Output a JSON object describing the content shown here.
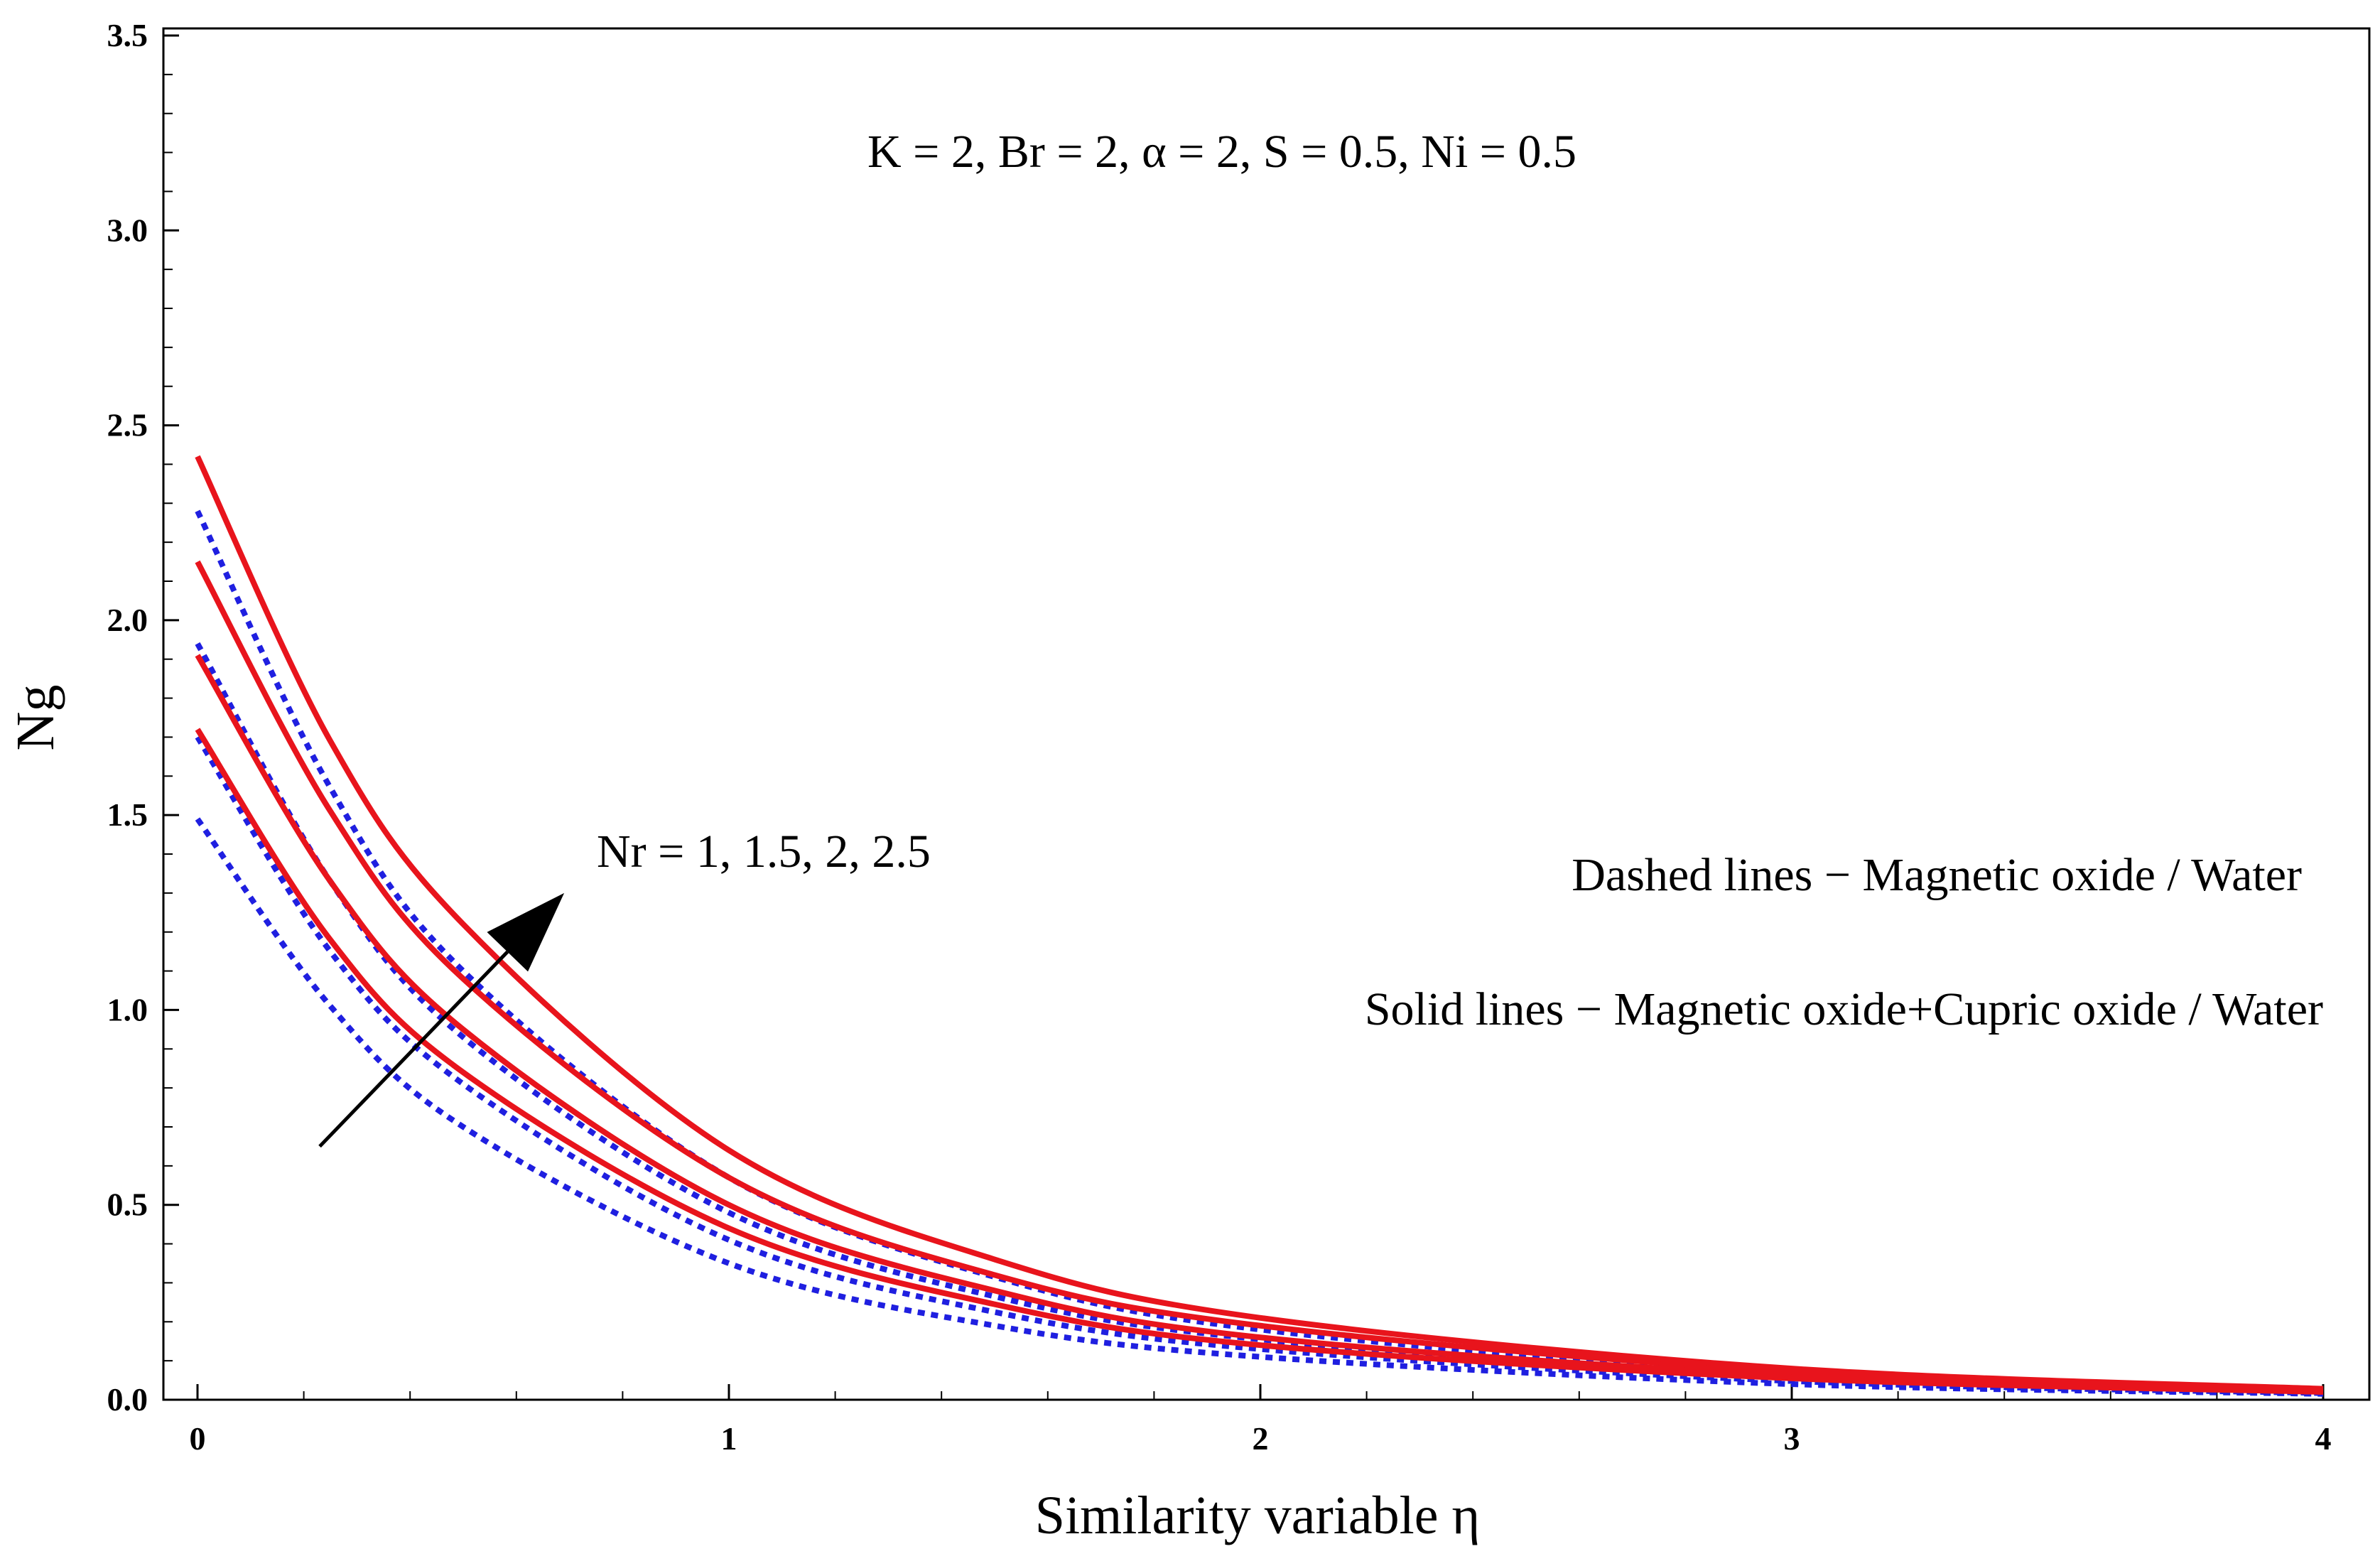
{
  "chart_data": {
    "type": "line",
    "title": "",
    "xlabel": "Similarity variable η",
    "ylabel": "Ng",
    "xlim": [
      0,
      4
    ],
    "ylim": [
      0,
      3.5
    ],
    "xticks": [
      0,
      1,
      2,
      3,
      4
    ],
    "xtick_labels": [
      "0",
      "1",
      "2",
      "3",
      "4"
    ],
    "yticks": [
      0,
      0.5,
      1.0,
      1.5,
      2.0,
      2.5,
      3.0,
      3.5
    ],
    "ytick_labels": [
      "0.0",
      "0.5",
      "1.0",
      "1.5",
      "2.0",
      "2.5",
      "3.0",
      "3.5"
    ],
    "grid": false,
    "annotations": {
      "params": "K = 2,  Br = 2,  α = 2, S = 0.5, Ni = 0.5",
      "nr_label": "Nr = 1, 1.5, 2, 2.5",
      "dashed_desc": "Dashed lines − Magnetic oxide / Water",
      "solid_desc": "Solid lines − Magnetic oxide+Cupric oxide / Water"
    },
    "colors": {
      "solid": "#e8141c",
      "dashed": "#1f1fe0",
      "arrow": "#000000"
    },
    "series": [
      {
        "style": "solid",
        "x": [
          0,
          0.25,
          0.5,
          1,
          1.5,
          2,
          3,
          4
        ],
        "y": [
          1.72,
          1.18,
          0.84,
          0.44,
          0.245,
          0.14,
          0.055,
          0.02
        ]
      },
      {
        "style": "solid",
        "x": [
          0,
          0.25,
          0.5,
          1,
          1.5,
          2,
          3,
          4
        ],
        "y": [
          1.91,
          1.33,
          0.95,
          0.5,
          0.28,
          0.16,
          0.062,
          0.022
        ]
      },
      {
        "style": "solid",
        "x": [
          0,
          0.25,
          0.5,
          1,
          1.5,
          2,
          3,
          4
        ],
        "y": [
          2.15,
          1.51,
          1.08,
          0.57,
          0.32,
          0.19,
          0.072,
          0.025
        ]
      },
      {
        "style": "solid",
        "x": [
          0,
          0.25,
          0.5,
          1,
          1.5,
          2,
          3,
          4
        ],
        "y": [
          2.42,
          1.69,
          1.22,
          0.64,
          0.36,
          0.21,
          0.08,
          0.028
        ]
      },
      {
        "style": "dashed",
        "x": [
          0,
          0.25,
          0.5,
          1,
          1.5,
          2,
          3,
          4
        ],
        "y": [
          1.49,
          1.01,
          0.7,
          0.35,
          0.19,
          0.11,
          0.04,
          0.015
        ]
      },
      {
        "style": "dashed",
        "x": [
          0,
          0.25,
          0.5,
          1,
          1.5,
          2,
          3,
          4
        ],
        "y": [
          1.7,
          1.15,
          0.81,
          0.41,
          0.225,
          0.13,
          0.048,
          0.017
        ]
      },
      {
        "style": "dashed",
        "x": [
          0,
          0.25,
          0.5,
          1,
          1.5,
          2,
          3,
          4
        ],
        "y": [
          1.94,
          1.33,
          0.93,
          0.48,
          0.265,
          0.155,
          0.058,
          0.02
        ]
      },
      {
        "style": "dashed",
        "x": [
          0,
          0.25,
          0.5,
          1,
          1.5,
          2,
          3,
          4
        ],
        "y": [
          2.28,
          1.57,
          1.1,
          0.57,
          0.315,
          0.18,
          0.068,
          0.024
        ]
      }
    ],
    "arrow": {
      "from": [
        0.23,
        0.65
      ],
      "to": [
        0.69,
        1.3
      ]
    }
  }
}
